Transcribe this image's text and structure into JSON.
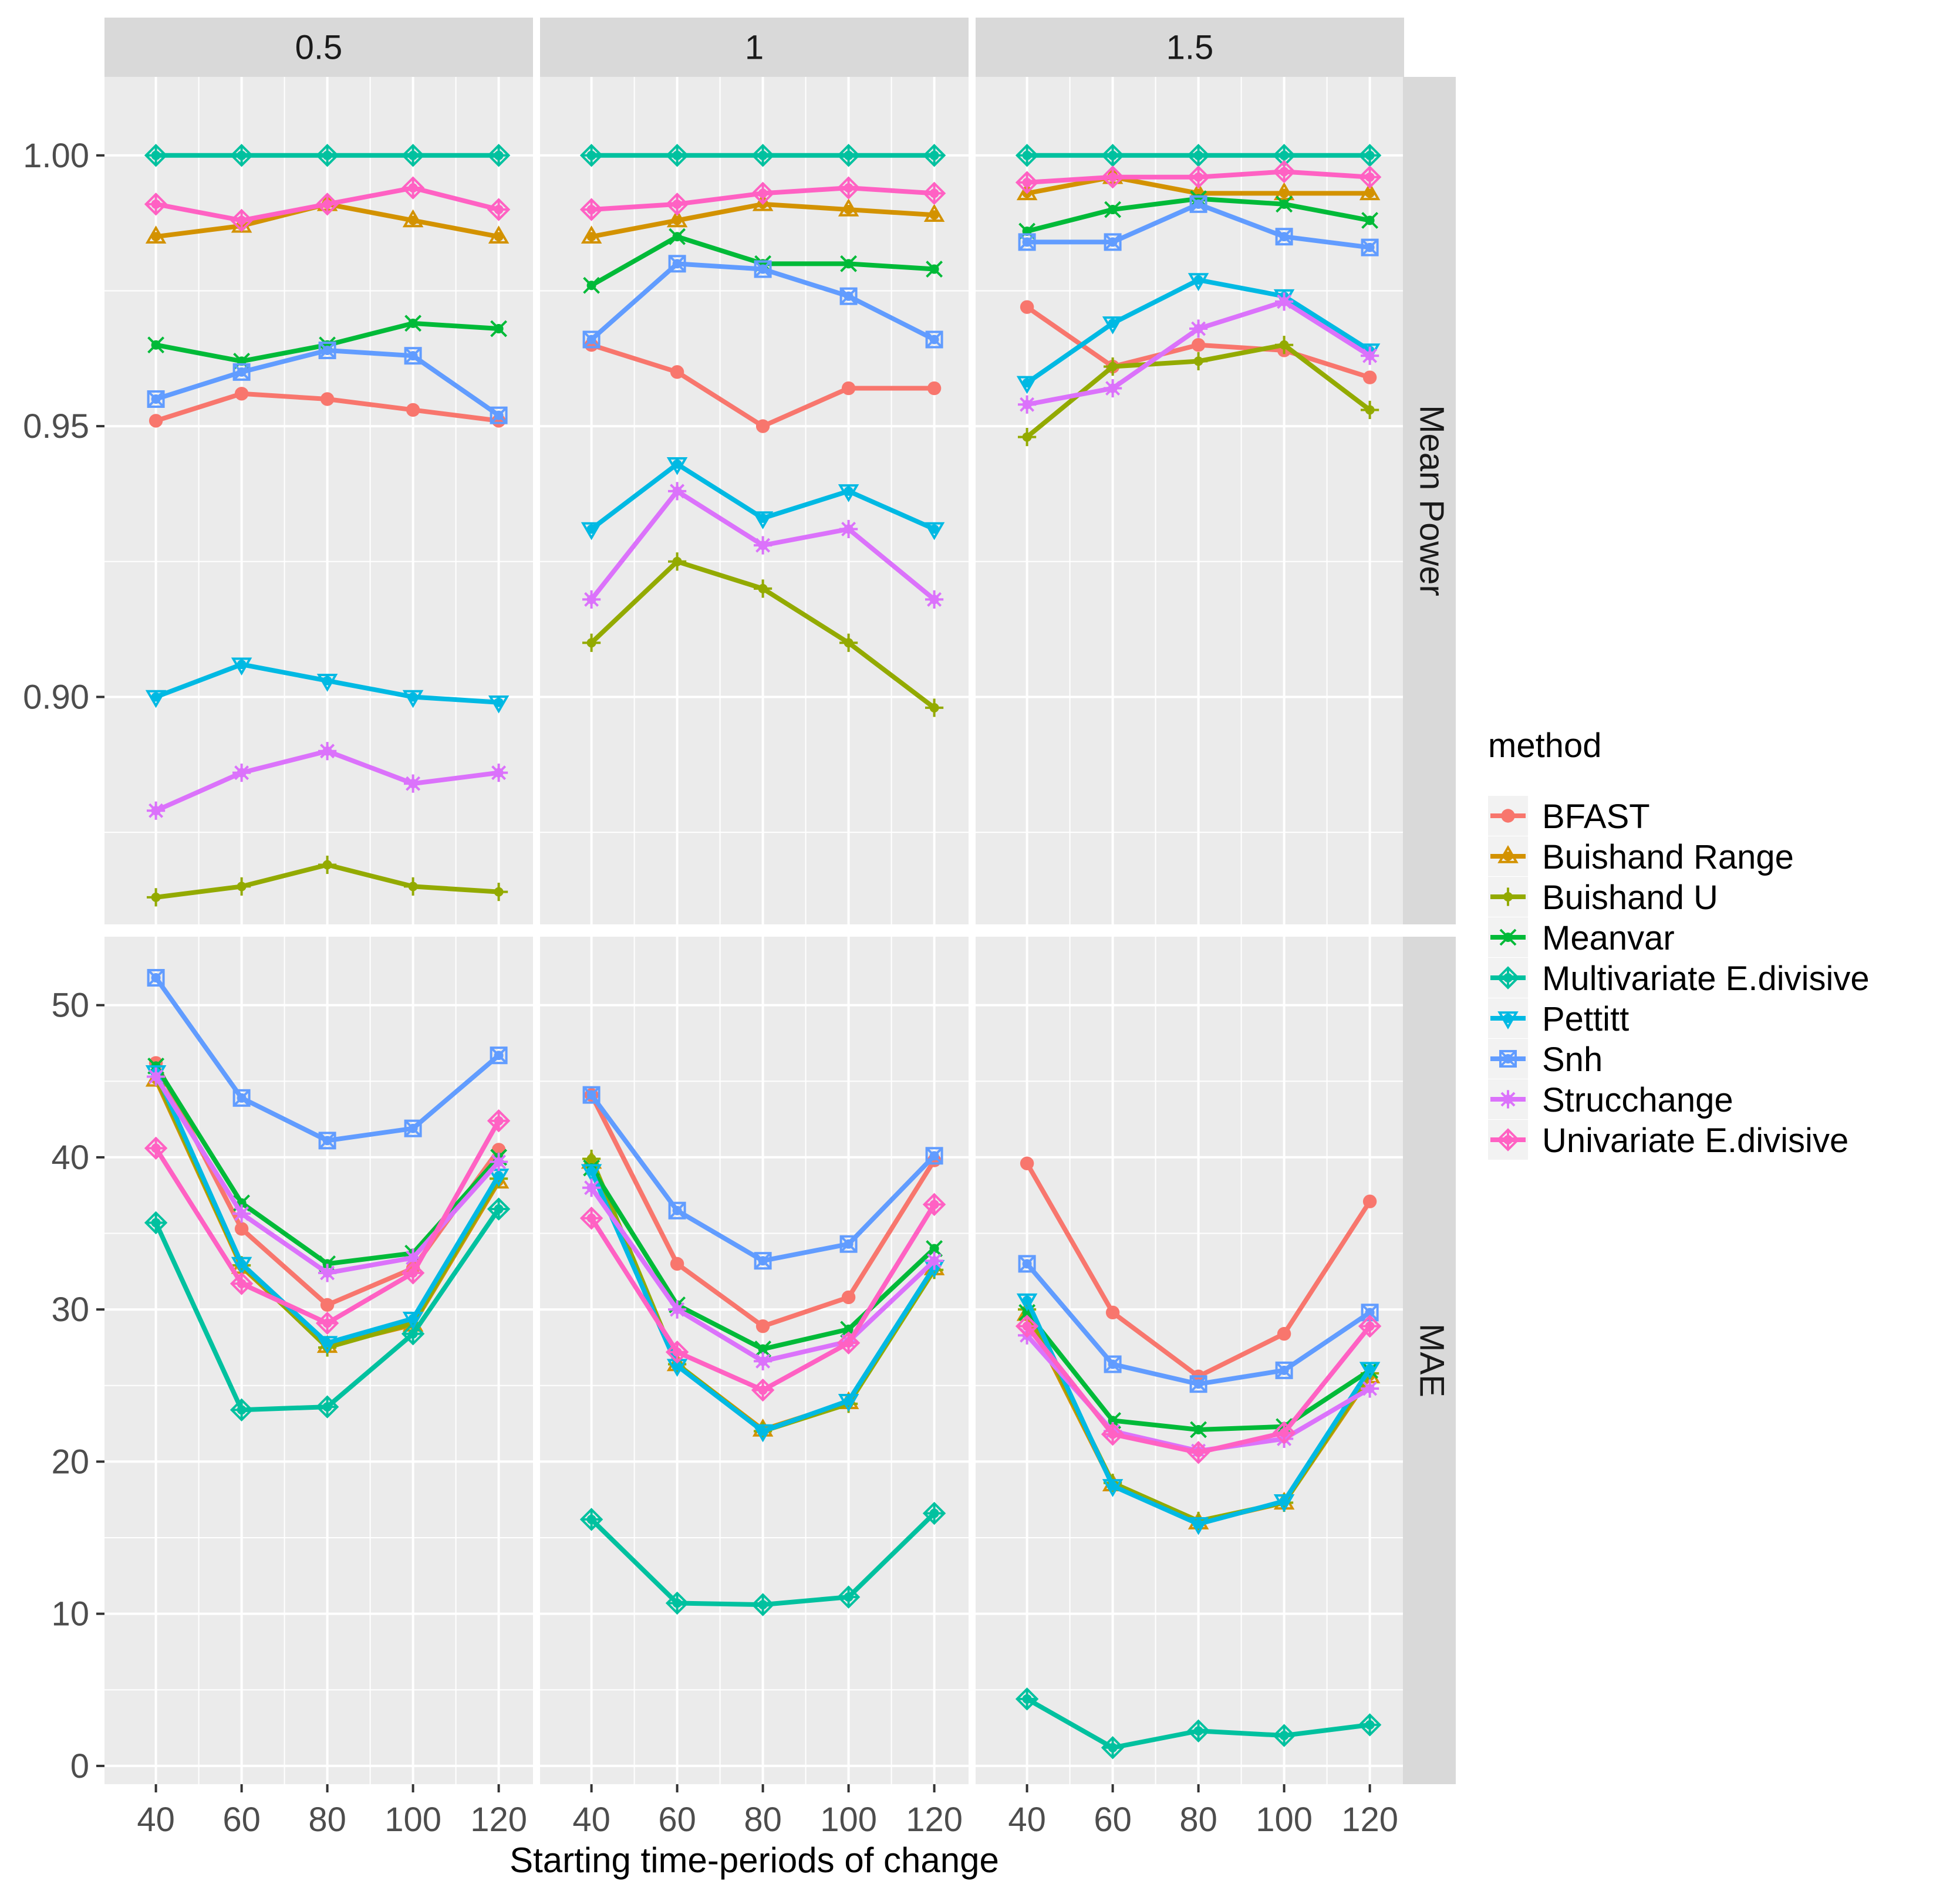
{
  "chart_data": {
    "type": "line",
    "title": "",
    "xlabel": "Starting time-periods of change",
    "x": [
      40,
      60,
      80,
      100,
      120
    ],
    "x_ticks": [
      "40",
      "60",
      "80",
      "100",
      "120"
    ],
    "xlim": [
      28,
      128
    ],
    "facet_columns": [
      "0.5",
      "1",
      "1.5"
    ],
    "facet_rows": [
      {
        "label": "Mean Power",
        "ylim": [
          0.858,
          1.0145
        ],
        "ticks": [
          0.9,
          0.95,
          1.0
        ],
        "tick_labels": [
          "0.90",
          "0.95",
          "1.00"
        ],
        "minor_ticks": [
          0.875,
          0.925,
          0.975
        ]
      },
      {
        "label": "MAE",
        "ylim": [
          -1.2,
          54.5
        ],
        "ticks": [
          0,
          10,
          20,
          30,
          40,
          50
        ],
        "tick_labels": [
          "0",
          "10",
          "20",
          "30",
          "40",
          "50"
        ],
        "minor_ticks": [
          5,
          15,
          25,
          35,
          45
        ]
      }
    ],
    "legend": {
      "title": "method",
      "position": "right"
    },
    "series": [
      {
        "name": "BFAST",
        "color": "#F8766D",
        "shape": "circle",
        "values": {
          "Mean Power": {
            "0.5": [
              0.951,
              0.956,
              0.955,
              0.953,
              0.951
            ],
            "1": [
              0.965,
              0.96,
              0.95,
              0.957,
              0.957
            ],
            "1.5": [
              0.972,
              0.961,
              0.965,
              0.964,
              0.959
            ]
          },
          "MAE": {
            "0.5": [
              46.2,
              35.3,
              30.3,
              32.7,
              40.5
            ],
            "1": [
              44.1,
              33.0,
              28.9,
              30.8,
              39.8
            ],
            "1.5": [
              39.6,
              29.8,
              25.6,
              28.4,
              37.1
            ]
          }
        }
      },
      {
        "name": "Buishand Range",
        "color": "#D39200",
        "shape": "triangle",
        "values": {
          "Mean Power": {
            "0.5": [
              0.985,
              0.987,
              0.991,
              0.988,
              0.985
            ],
            "1": [
              0.985,
              0.988,
              0.991,
              0.99,
              0.989
            ],
            "1.5": [
              0.993,
              0.996,
              0.993,
              0.993,
              0.993
            ]
          },
          "MAE": {
            "0.5": [
              45.1,
              32.8,
              27.6,
              29.0,
              38.4
            ],
            "1": [
              39.7,
              26.4,
              22.1,
              23.9,
              32.7
            ],
            "1.5": [
              29.7,
              18.5,
              16.0,
              17.3,
              25.6
            ]
          }
        }
      },
      {
        "name": "Buishand U",
        "color": "#93AA00",
        "shape": "plus",
        "values": {
          "Mean Power": {
            "0.5": [
              0.863,
              0.865,
              0.869,
              0.865,
              0.864
            ],
            "1": [
              0.91,
              0.925,
              0.92,
              0.91,
              0.898
            ],
            "1.5": [
              0.948,
              0.961,
              0.962,
              0.965,
              0.953
            ]
          },
          "MAE": {
            "0.5": [
              45.3,
              32.9,
              27.5,
              29.1,
              38.6
            ],
            "1": [
              39.9,
              26.4,
              22.0,
              23.8,
              32.6
            ],
            "1.5": [
              30.0,
              18.6,
              16.1,
              17.3,
              25.8
            ]
          }
        }
      },
      {
        "name": "Meanvar",
        "color": "#00BA38",
        "shape": "cross",
        "values": {
          "Mean Power": {
            "0.5": [
              0.965,
              0.962,
              0.965,
              0.969,
              0.968
            ],
            "1": [
              0.976,
              0.985,
              0.98,
              0.98,
              0.979
            ],
            "1.5": [
              0.986,
              0.99,
              0.992,
              0.991,
              0.988
            ]
          },
          "MAE": {
            "0.5": [
              46.0,
              37.0,
              33.0,
              33.7,
              40.0
            ],
            "1": [
              39.3,
              30.3,
              27.4,
              28.7,
              34.0
            ],
            "1.5": [
              29.8,
              22.7,
              22.1,
              22.3,
              26.0
            ]
          }
        }
      },
      {
        "name": "Multivariate E.divisive",
        "color": "#00C19F",
        "shape": "diamond-plus",
        "values": {
          "Mean Power": {
            "0.5": [
              1.0,
              1.0,
              1.0,
              1.0,
              1.0
            ],
            "1": [
              1.0,
              1.0,
              1.0,
              1.0,
              1.0
            ],
            "1.5": [
              1.0,
              1.0,
              1.0,
              1.0,
              1.0
            ]
          },
          "MAE": {
            "0.5": [
              35.7,
              23.4,
              23.6,
              28.4,
              36.6
            ],
            "1": [
              16.2,
              10.7,
              10.6,
              11.1,
              16.6
            ],
            "1.5": [
              4.4,
              1.2,
              2.3,
              2.0,
              2.7
            ]
          }
        }
      },
      {
        "name": "Pettitt",
        "color": "#00B9E3",
        "shape": "triangle-down",
        "values": {
          "Mean Power": {
            "0.5": [
              0.9,
              0.906,
              0.903,
              0.9,
              0.899
            ],
            "1": [
              0.931,
              0.943,
              0.933,
              0.938,
              0.931
            ],
            "1.5": [
              0.958,
              0.969,
              0.977,
              0.974,
              0.964
            ]
          },
          "MAE": {
            "0.5": [
              45.6,
              33.0,
              27.8,
              29.4,
              38.8
            ],
            "1": [
              39.1,
              26.3,
              22.0,
              24.0,
              32.8
            ],
            "1.5": [
              30.6,
              18.4,
              15.9,
              17.4,
              26.1
            ]
          }
        }
      },
      {
        "name": "Snh",
        "color": "#619CFF",
        "shape": "square-x",
        "values": {
          "Mean Power": {
            "0.5": [
              0.955,
              0.96,
              0.964,
              0.963,
              0.952
            ],
            "1": [
              0.966,
              0.98,
              0.979,
              0.974,
              0.966
            ],
            "1.5": [
              0.984,
              0.984,
              0.991,
              0.985,
              0.983
            ]
          },
          "MAE": {
            "0.5": [
              51.8,
              43.9,
              41.1,
              41.9,
              46.7
            ],
            "1": [
              44.1,
              36.5,
              33.2,
              34.3,
              40.1
            ],
            "1.5": [
              33.0,
              26.4,
              25.1,
              26.0,
              29.8
            ]
          }
        }
      },
      {
        "name": "Strucchange",
        "color": "#DB72FB",
        "shape": "asterisk",
        "values": {
          "Mean Power": {
            "0.5": [
              0.879,
              0.886,
              0.89,
              0.884,
              0.886
            ],
            "1": [
              0.918,
              0.938,
              0.928,
              0.931,
              0.918
            ],
            "1.5": [
              0.954,
              0.957,
              0.968,
              0.973,
              0.963
            ]
          },
          "MAE": {
            "0.5": [
              45.3,
              36.3,
              32.4,
              33.4,
              39.7
            ],
            "1": [
              38.0,
              30.0,
              26.6,
              27.9,
              33.2
            ],
            "1.5": [
              28.3,
              22.0,
              20.7,
              21.5,
              24.8
            ]
          }
        }
      },
      {
        "name": "Univariate E.divisive",
        "color": "#FF61C3",
        "shape": "diamond",
        "values": {
          "Mean Power": {
            "0.5": [
              0.991,
              0.988,
              0.991,
              0.994,
              0.99
            ],
            "1": [
              0.99,
              0.991,
              0.993,
              0.994,
              0.993
            ],
            "1.5": [
              0.995,
              0.996,
              0.996,
              0.997,
              0.996
            ]
          },
          "MAE": {
            "0.5": [
              40.6,
              31.7,
              29.1,
              32.4,
              42.4
            ],
            "1": [
              36.0,
              27.2,
              24.7,
              27.8,
              36.9
            ],
            "1.5": [
              28.9,
              21.8,
              20.6,
              21.9,
              28.9
            ]
          }
        }
      }
    ]
  }
}
